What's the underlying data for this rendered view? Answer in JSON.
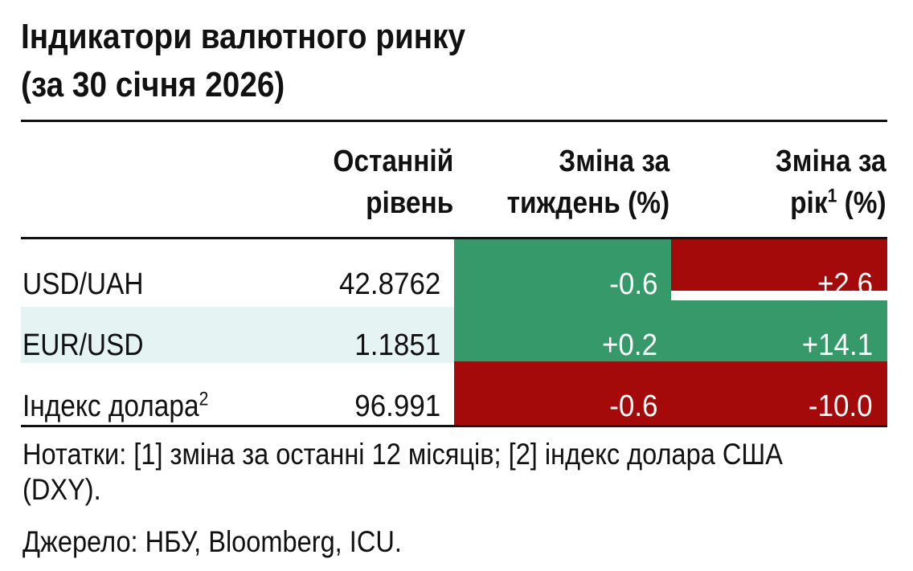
{
  "title_lines": [
    "Індикатори валютного ринку",
    "(за 30 січня 2026)"
  ],
  "columns": {
    "last_level": [
      "Останній",
      "рівень"
    ],
    "week_change": [
      "Зміна за",
      "тиждень (%)"
    ],
    "year_change_line1": "Зміна за",
    "year_change_word": "рік",
    "year_change_sup": "1",
    "year_change_tail": " (%)"
  },
  "colors": {
    "positive_green": "#35996a",
    "negative_red": "#a50a0b",
    "row_band": "#e5f3f3"
  },
  "chart_data": {
    "type": "table",
    "title": "Індикатори валютного ринку (за 30 січня 2026)",
    "columns": [
      "Останній рівень",
      "Зміна за тиждень (%)",
      "Зміна за рік¹ (%)"
    ],
    "rows": [
      {
        "label": "USD/UAH",
        "label_sup": "",
        "last": "42.8762",
        "week": "-0.6",
        "year": "+2.6",
        "week_color": "green",
        "year_color": "red"
      },
      {
        "label": "EUR/USD",
        "label_sup": "",
        "last": "1.1851",
        "week": "+0.2",
        "year": "+14.1",
        "week_color": "green",
        "year_color": "green"
      },
      {
        "label": "Індекс долара",
        "label_sup": "2",
        "last": "96.991",
        "week": "-0.6",
        "year": "-10.0",
        "week_color": "red",
        "year_color": "red"
      }
    ]
  },
  "notes": "Нотатки: [1] зміна за останні 12 місяців; [2] індекс долара США (DXY).",
  "source": "Джерело: НБУ, Bloomberg, ICU."
}
